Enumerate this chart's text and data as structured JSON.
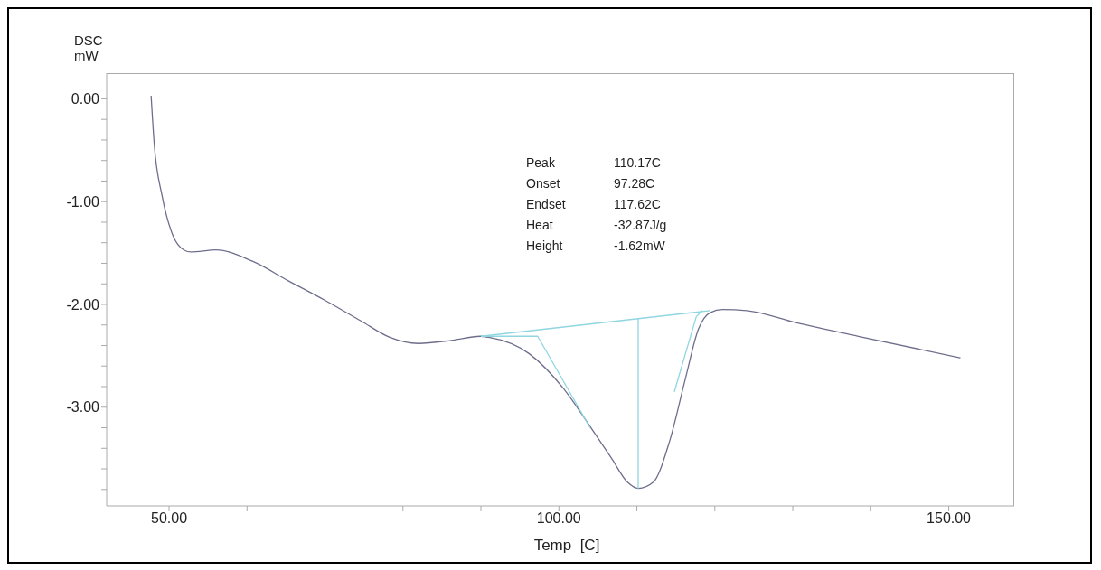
{
  "chart_data": {
    "type": "line",
    "xlabel": "Temp  [C]",
    "ylabel": "DSC\nmW",
    "xlim": [
      42,
      158.4
    ],
    "ylim": [
      -3.96,
      0.25
    ],
    "xticks": [
      {
        "value": 50,
        "label": "50.00"
      },
      {
        "value": 60,
        "label": null
      },
      {
        "value": 70,
        "label": null
      },
      {
        "value": 80,
        "label": null
      },
      {
        "value": 90,
        "label": null
      },
      {
        "value": 100,
        "label": "100.00"
      },
      {
        "value": 110,
        "label": null
      },
      {
        "value": 120,
        "label": null
      },
      {
        "value": 130,
        "label": null
      },
      {
        "value": 140,
        "label": null
      },
      {
        "value": 150,
        "label": "150.00"
      }
    ],
    "yticks": [
      {
        "value": 0,
        "label": "0.00"
      },
      {
        "value": -0.2,
        "label": null
      },
      {
        "value": -0.4,
        "label": null
      },
      {
        "value": -0.6,
        "label": null
      },
      {
        "value": -0.8,
        "label": null
      },
      {
        "value": -1,
        "label": "-1.00"
      },
      {
        "value": -1.2,
        "label": null
      },
      {
        "value": -1.4,
        "label": null
      },
      {
        "value": -1.6,
        "label": null
      },
      {
        "value": -1.8,
        "label": null
      },
      {
        "value": -2,
        "label": "-2.00"
      },
      {
        "value": -2.2,
        "label": null
      },
      {
        "value": -2.4,
        "label": null
      },
      {
        "value": -2.6,
        "label": null
      },
      {
        "value": -2.8,
        "label": null
      },
      {
        "value": -3,
        "label": "-3.00"
      },
      {
        "value": -3.2,
        "label": null
      },
      {
        "value": -3.4,
        "label": null
      },
      {
        "value": -3.6,
        "label": null
      },
      {
        "value": -3.8,
        "label": null
      }
    ],
    "grid": false,
    "marker": "none",
    "line_style": "solid",
    "series": [
      {
        "color": "#6e6e8c",
        "x": [
          47.7,
          48.1,
          49.1,
          50.5,
          51.9,
          52.8,
          56.0,
          60.7,
          65.3,
          70.0,
          74.6,
          78.3,
          82.0,
          86.2,
          89.9,
          91.0,
          96.2,
          100.5,
          104.2,
          106.7,
          108.8,
          110.2,
          112.1,
          114.2,
          116.2,
          117.9,
          119.4,
          121.0,
          124.1,
          130.5,
          138.4,
          151.5
        ],
        "values": [
          0.03,
          -0.44,
          -0.94,
          -1.33,
          -1.47,
          -1.49,
          -1.47,
          -1.58,
          -1.77,
          -1.96,
          -2.16,
          -2.32,
          -2.38,
          -2.35,
          -2.31,
          -2.32,
          -2.48,
          -2.81,
          -3.21,
          -3.49,
          -3.73,
          -3.79,
          -3.73,
          -3.33,
          -2.73,
          -2.24,
          -2.08,
          -2.05,
          -2.06,
          -2.18,
          -2.31,
          -2.52
        ]
      },
      {
        "color": "#8fd6e0",
        "x": [
          90,
          119.4
        ],
        "values": [
          -2.31,
          -2.06
        ]
      },
      {
        "color": "#8fd6e0",
        "x": [
          90,
          97.28,
          104
        ],
        "values": [
          -2.31,
          -2.31,
          -3.2
        ]
      },
      {
        "color": "#8fd6e0",
        "x": [
          110.17,
          110.17
        ],
        "values": [
          -2.14,
          -3.79
        ]
      },
      {
        "color": "#8fd6e0",
        "x": [
          114.8,
          117.62,
          118.4
        ],
        "values": [
          -2.85,
          -2.12,
          -2.06
        ]
      }
    ],
    "annotations": [
      "Peak 110.17C",
      "Onset 97.28C",
      "Endset 117.62C",
      "Heat -32.87J/g",
      "Height -1.62mW"
    ]
  }
}
